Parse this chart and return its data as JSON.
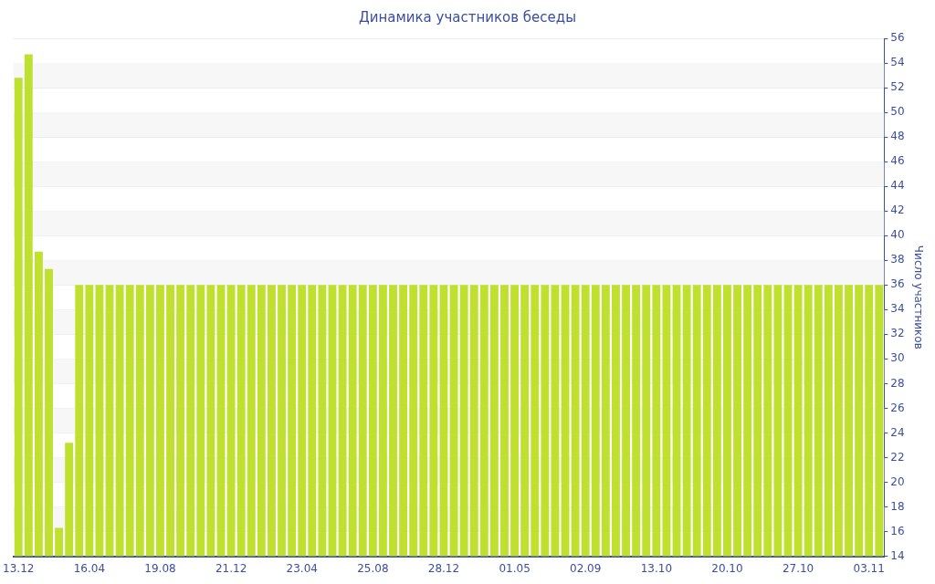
{
  "chart_data": {
    "type": "bar",
    "title": "Динамика участников беседы",
    "ylabel": "Число участников",
    "categories": [
      "13.12",
      null,
      null,
      null,
      null,
      null,
      null,
      "16.04",
      null,
      null,
      null,
      null,
      null,
      null,
      "19.08",
      null,
      null,
      null,
      null,
      null,
      null,
      "21.12",
      null,
      null,
      null,
      null,
      null,
      null,
      "23.04",
      null,
      null,
      null,
      null,
      null,
      null,
      "25.08",
      null,
      null,
      null,
      null,
      null,
      null,
      "28.12",
      null,
      null,
      null,
      null,
      null,
      null,
      "01.05",
      null,
      null,
      null,
      null,
      null,
      null,
      "02.09",
      null,
      null,
      null,
      null,
      null,
      null,
      "13.10",
      null,
      null,
      null,
      null,
      null,
      null,
      "20.10",
      null,
      null,
      null,
      null,
      null,
      null,
      "27.10",
      null,
      null,
      null,
      null,
      null,
      null,
      "03.11",
      null
    ],
    "values": [
      52.8,
      54.7,
      38.7,
      37.3,
      16.3,
      23.2,
      36,
      36,
      36,
      36,
      36,
      36,
      36,
      36,
      36,
      36,
      36,
      36,
      36,
      36,
      36,
      36,
      36,
      36,
      36,
      36,
      36,
      36,
      36,
      36,
      36,
      36,
      36,
      36,
      36,
      36,
      36,
      36,
      36,
      36,
      36,
      36,
      36,
      36,
      36,
      36,
      36,
      36,
      36,
      36,
      36,
      36,
      36,
      36,
      36,
      36,
      36,
      36,
      36,
      36,
      36,
      36,
      36,
      36,
      36,
      36,
      36,
      36,
      36,
      36,
      36,
      36,
      36,
      36,
      36,
      36,
      36,
      36,
      36,
      36,
      36,
      36,
      36,
      36,
      36,
      36
    ],
    "color": "#bfe02f",
    "ylim": [
      14,
      56
    ],
    "yticks": [
      14,
      16,
      18,
      20,
      22,
      24,
      26,
      28,
      30,
      32,
      34,
      36,
      38,
      40,
      42,
      44,
      46,
      48,
      50,
      52,
      54,
      56
    ],
    "grid": "y",
    "legend": false
  }
}
